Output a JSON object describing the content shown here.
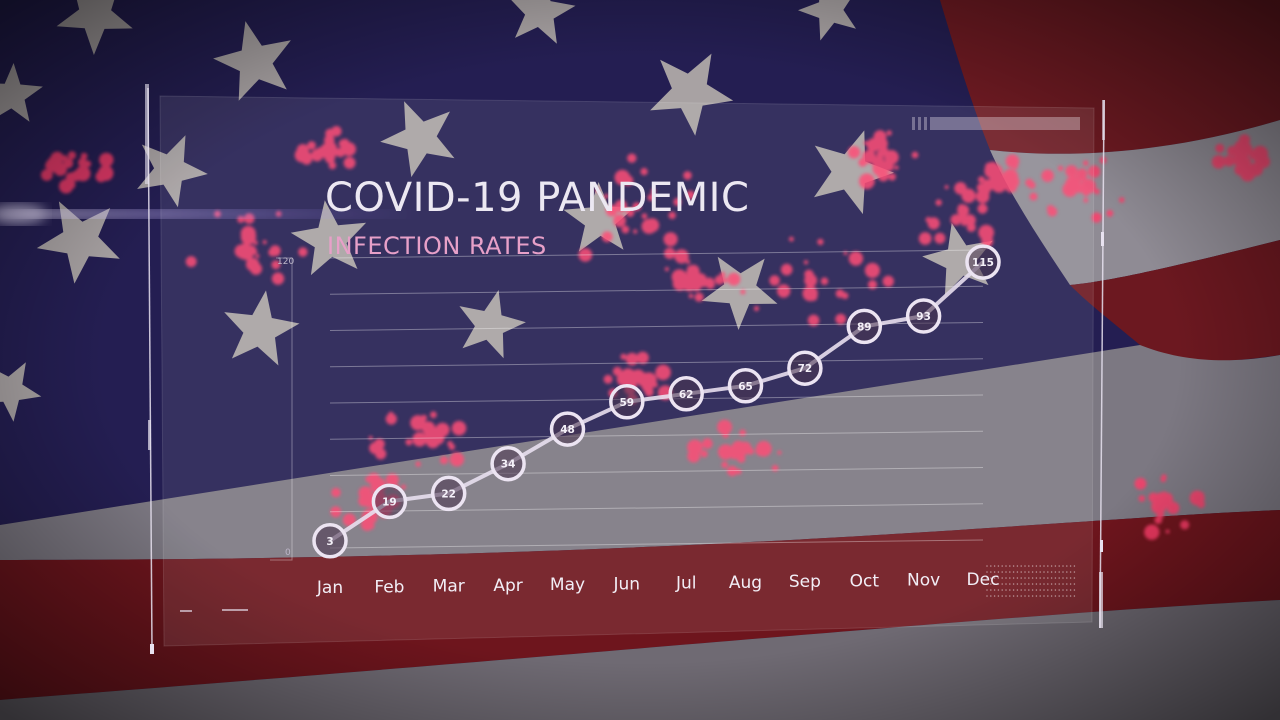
{
  "colors": {
    "flag_blue": "#1f1b4a",
    "flag_red": "#7a1018",
    "flag_white": "#8a8690",
    "virus": "#ff3d6a",
    "line": "#e8dfee",
    "panel": "#ffffff"
  },
  "chart_data": {
    "type": "line",
    "title": "COVID-19 PANDEMIC",
    "subtitle": "INFECTION RATES",
    "xlabel": "",
    "ylabel": "",
    "categories": [
      "Jan",
      "Feb",
      "Mar",
      "Apr",
      "May",
      "Jun",
      "Jul",
      "Aug",
      "Sep",
      "Oct",
      "Nov",
      "Dec"
    ],
    "series": [
      {
        "values": [
          3,
          19,
          22,
          34,
          48,
          59,
          62,
          65,
          72,
          89,
          93,
          115
        ]
      }
    ],
    "ylim": [
      0,
      120
    ],
    "yticks": [
      "0",
      "120"
    ],
    "grid": true,
    "legend": "none"
  }
}
